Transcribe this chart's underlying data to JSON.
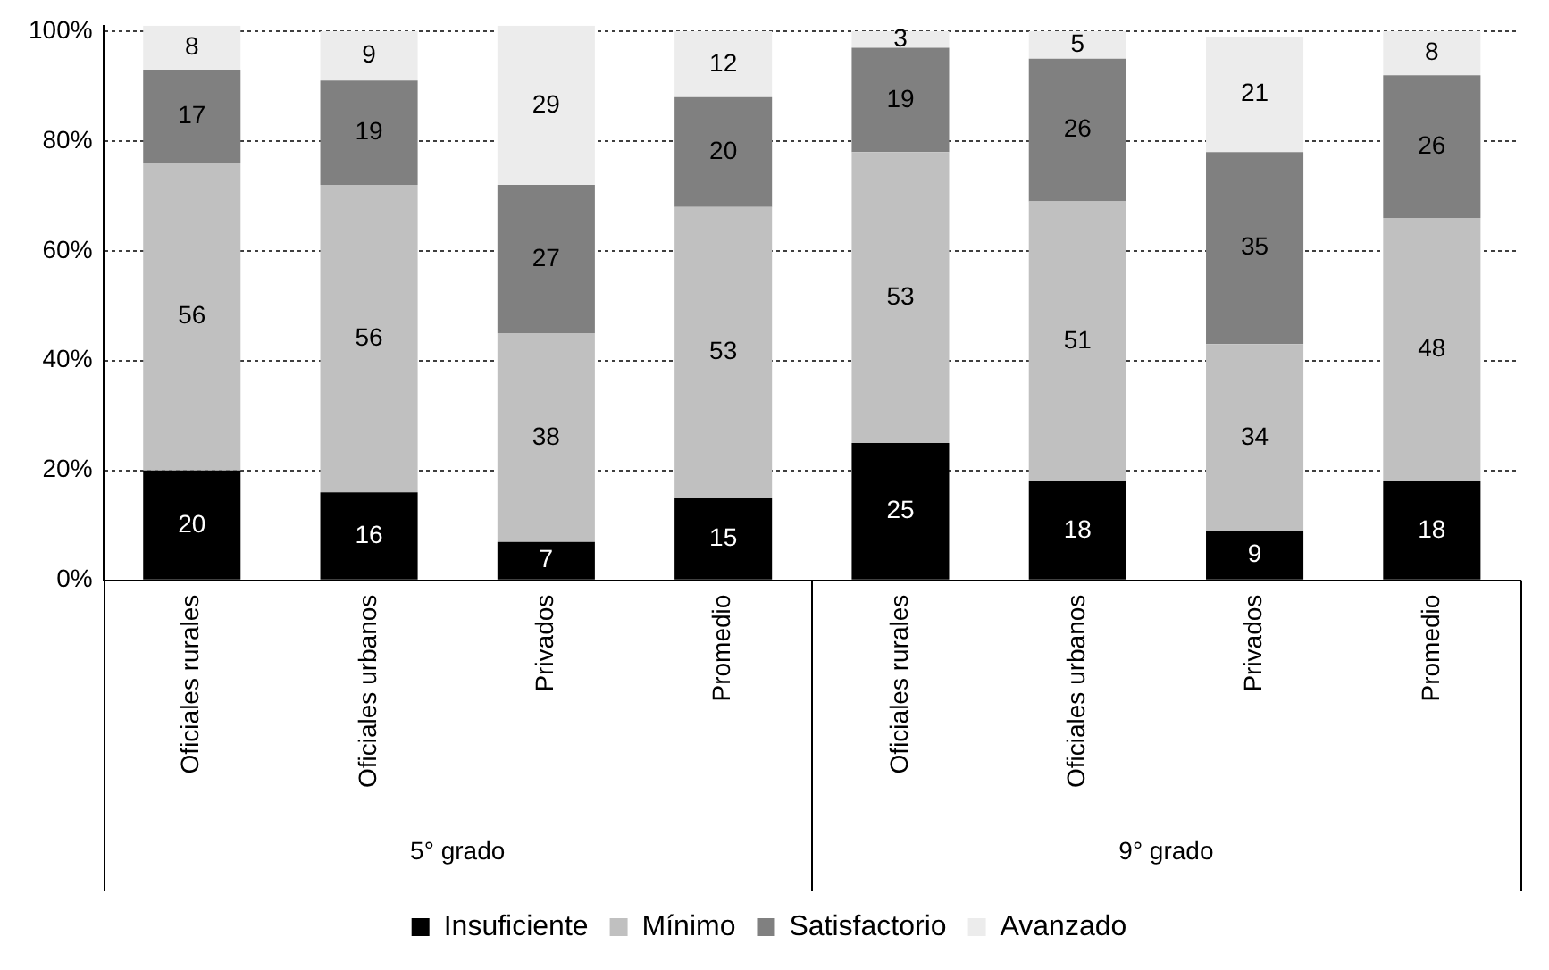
{
  "chart_data": {
    "type": "bar",
    "stacked": true,
    "categories": [
      "Oficiales rurales",
      "Oficiales urbanos",
      "Privados",
      "Promedio",
      "Oficiales rurales",
      "Oficiales urbanos",
      "Privados",
      "Promedio"
    ],
    "annotations": [
      "5° grado",
      "9° grado"
    ],
    "series": [
      {
        "name": "Insuficiente",
        "color": "#000000",
        "values": [
          20,
          16,
          7,
          15,
          25,
          18,
          9,
          18
        ]
      },
      {
        "name": "Mínimo",
        "color": "#c0c0c0",
        "values": [
          56,
          56,
          38,
          53,
          53,
          51,
          34,
          48
        ]
      },
      {
        "name": "Satisfactorio",
        "color": "#808080",
        "values": [
          17,
          19,
          27,
          20,
          19,
          26,
          35,
          26
        ]
      },
      {
        "name": "Avanzado",
        "color": "#ececec",
        "values": [
          8,
          9,
          29,
          12,
          3,
          5,
          21,
          8
        ]
      }
    ],
    "ylim": [
      0,
      101
    ],
    "yticks": [
      {
        "value": 0,
        "label": "0%"
      },
      {
        "value": 20,
        "label": "20%"
      },
      {
        "value": 40,
        "label": "40%"
      },
      {
        "value": 60,
        "label": "60%"
      },
      {
        "value": 80,
        "label": "80%"
      },
      {
        "value": 100,
        "label": "100%"
      }
    ],
    "grid": "y",
    "legend": "bottom",
    "data_labels": true
  }
}
